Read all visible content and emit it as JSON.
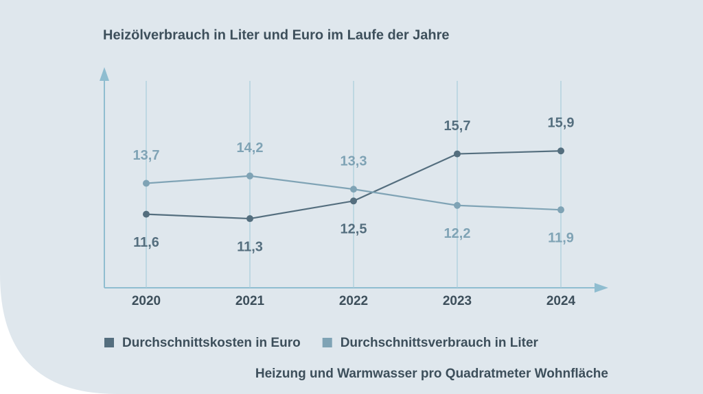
{
  "chart_data": {
    "type": "line",
    "title": "Heizölverbrauch in Liter und Euro im Laufe der Jahre",
    "note": "Heizung und Warmwasser pro Quadratmeter Wohnfläche",
    "categories": [
      "2020",
      "2021",
      "2022",
      "2023",
      "2024"
    ],
    "series": [
      {
        "name": "Durchschnittskosten in Euro",
        "color": "#546e7e",
        "values": [
          11.6,
          11.3,
          12.5,
          15.7,
          15.9
        ],
        "value_labels": [
          "11,6",
          "11,3",
          "12,5",
          "15,7",
          "15,9"
        ]
      },
      {
        "name": "Durchschnittsverbrauch in Liter",
        "color": "#7fa3b5",
        "values": [
          13.7,
          14.2,
          13.3,
          12.2,
          11.9
        ],
        "value_labels": [
          "13,7",
          "14,2",
          "13,3",
          "12,2",
          "11,9"
        ]
      }
    ],
    "ylim": [
      6.6,
      21.5
    ],
    "grid": true
  }
}
